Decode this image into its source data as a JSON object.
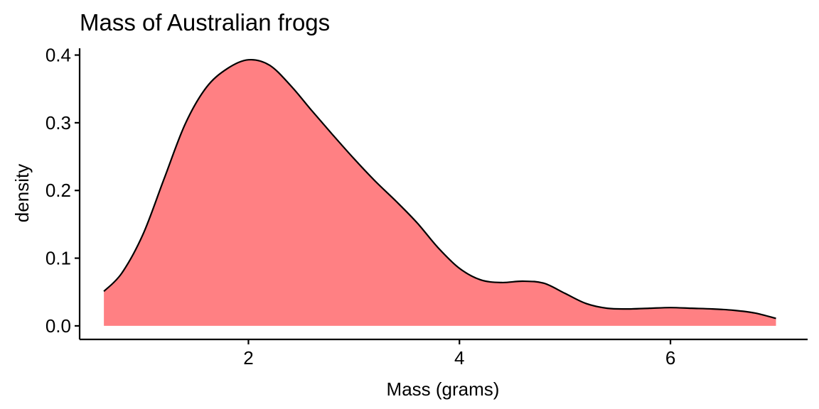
{
  "chart_data": {
    "type": "area",
    "title": "Mass of Australian frogs",
    "xlabel": "Mass (grams)",
    "ylabel": "density",
    "xlim": [
      0.4,
      7.3
    ],
    "ylim": [
      -0.02,
      0.41
    ],
    "x_ticks": [
      2,
      4,
      6
    ],
    "x_tick_labels": [
      "2",
      "4",
      "6"
    ],
    "y_ticks": [
      0.0,
      0.1,
      0.2,
      0.3,
      0.4
    ],
    "y_tick_labels": [
      "0.0",
      "0.1",
      "0.2",
      "0.3",
      "0.4"
    ],
    "grid": false,
    "fill_color": "#FF8083",
    "line_color": "#000000",
    "x": [
      0.63,
      0.8,
      1.0,
      1.2,
      1.4,
      1.6,
      1.8,
      2.0,
      2.2,
      2.4,
      2.6,
      2.8,
      3.0,
      3.2,
      3.4,
      3.6,
      3.8,
      4.0,
      4.2,
      4.4,
      4.6,
      4.8,
      5.0,
      5.2,
      5.4,
      5.6,
      5.8,
      6.0,
      6.2,
      6.4,
      6.6,
      6.8,
      7.0
    ],
    "y": [
      0.051,
      0.078,
      0.135,
      0.217,
      0.298,
      0.352,
      0.38,
      0.393,
      0.385,
      0.355,
      0.318,
      0.282,
      0.247,
      0.214,
      0.184,
      0.152,
      0.115,
      0.085,
      0.068,
      0.064,
      0.066,
      0.063,
      0.048,
      0.033,
      0.026,
      0.025,
      0.026,
      0.027,
      0.026,
      0.025,
      0.023,
      0.019,
      0.011
    ]
  }
}
